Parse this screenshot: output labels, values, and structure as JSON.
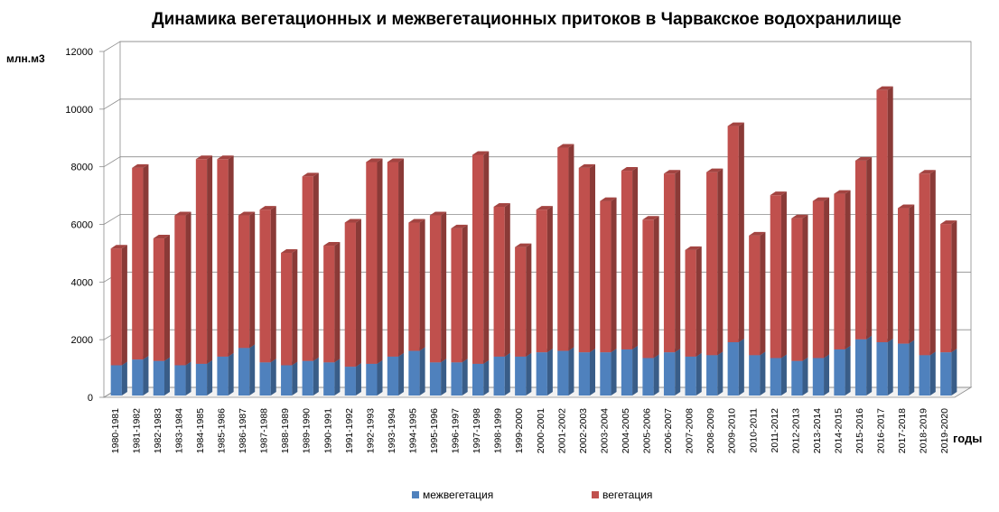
{
  "chart_data": {
    "type": "bar",
    "stacked": true,
    "style": "3d-column",
    "title": "Динамика вегетационных и межвегетационных притоков в Чарвакское водохранилище",
    "ylabel": "млн.м3",
    "xlabel": "годы",
    "ylim": [
      0,
      12000
    ],
    "yticks": [
      "0",
      "2000",
      "4000",
      "6000",
      "8000",
      "10000",
      "12000"
    ],
    "grid": true,
    "legend_position": "bottom",
    "categories": [
      "1980-1981",
      "1981-1982",
      "1982-1983",
      "1983-1984",
      "1984-1985",
      "1985-1986",
      "1986-1987",
      "1987-1988",
      "1988-1989",
      "1989-1990",
      "1990-1991",
      "1991-1992",
      "1992-1993",
      "1993-1994",
      "1994-1995",
      "1995-1996",
      "1996-1997",
      "1997-1998",
      "1998-1999",
      "1999-2000",
      "2000-2001",
      "2001-2002",
      "2002-2003",
      "2003-2004",
      "2004-2005",
      "2005-2006",
      "2006-2007",
      "2007-2008",
      "2008-2009",
      "2009-2010",
      "2010-2011",
      "2011-2012",
      "2012-2013",
      "2013-2014",
      "2014-2015",
      "2015-2016",
      "2016-2017",
      "2017-2018",
      "2018-2019",
      "2019-2020"
    ],
    "series": [
      {
        "name": "межвегетация",
        "color": "#4f81bd",
        "values": [
          1050,
          1250,
          1200,
          1050,
          1100,
          1350,
          1650,
          1150,
          1050,
          1200,
          1150,
          1000,
          1100,
          1350,
          1550,
          1150,
          1150,
          1100,
          1350,
          1350,
          1500,
          1550,
          1500,
          1500,
          1600,
          1300,
          1500,
          1350,
          1400,
          1850,
          1400,
          1300,
          1200,
          1300,
          1600,
          1950,
          1850,
          1800,
          1400,
          1500
        ]
      },
      {
        "name": "вегетация",
        "color": "#c0504d",
        "values": [
          4050,
          6650,
          4250,
          5200,
          7100,
          6850,
          4600,
          5300,
          3900,
          6400,
          4050,
          5000,
          7000,
          6750,
          4450,
          5100,
          4650,
          7250,
          5200,
          3800,
          4950,
          7050,
          6400,
          5250,
          6200,
          4800,
          6200,
          3700,
          6350,
          7500,
          4150,
          5650,
          4950,
          5450,
          5400,
          6200,
          8750,
          4700,
          6300,
          4450
        ]
      }
    ]
  }
}
